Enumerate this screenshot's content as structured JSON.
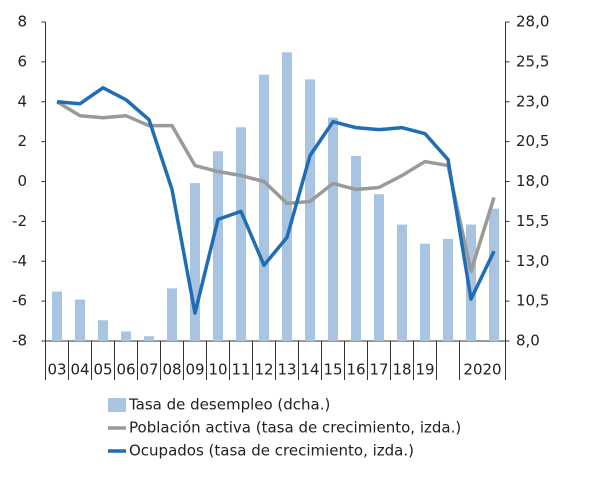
{
  "chart_data": {
    "type": "combo",
    "categories": [
      "03",
      "04",
      "05",
      "06",
      "07",
      "08",
      "09",
      "10",
      "11",
      "12",
      "13",
      "14",
      "15",
      "16",
      "17",
      "18",
      "19",
      null,
      "2020",
      null
    ],
    "series": [
      {
        "name": "Tasa de desempleo (dcha.)",
        "type": "bar",
        "axis": "y2",
        "color": "#a9c4e0",
        "values": [
          11.1,
          10.6,
          9.3,
          8.6,
          8.3,
          11.3,
          17.9,
          19.9,
          21.4,
          24.7,
          26.1,
          24.4,
          22.0,
          19.6,
          17.2,
          15.3,
          14.1,
          14.4,
          15.3,
          16.3
        ]
      },
      {
        "name": "Población activa (tasa de crecimiento, izda.)",
        "type": "line",
        "color": "#9a9a9a",
        "values": [
          4.0,
          3.3,
          3.2,
          3.3,
          2.8,
          2.8,
          0.8,
          0.5,
          0.3,
          0.0,
          -1.1,
          -1.0,
          -0.1,
          -0.4,
          -0.3,
          0.3,
          1.0,
          0.8,
          -4.5,
          -0.8
        ]
      },
      {
        "name": "Ocupados (tasa de  crecimiento, izda.)",
        "type": "line",
        "color": "#1f6db5",
        "values": [
          4.0,
          3.9,
          4.7,
          4.1,
          3.1,
          -0.4,
          -6.6,
          -1.9,
          -1.5,
          -4.2,
          -2.8,
          1.3,
          3.0,
          2.7,
          2.6,
          2.7,
          2.4,
          1.1,
          -5.9,
          -3.5
        ]
      }
    ],
    "ylim": [
      -8,
      8
    ],
    "yticks": [
      -8,
      -6,
      -4,
      -2,
      0,
      2,
      4,
      6,
      8
    ],
    "y2lim": [
      8,
      28
    ],
    "y2ticks": [
      {
        "value": 8,
        "label": "8,0"
      },
      {
        "value": 10.5,
        "label": "10,5"
      },
      {
        "value": 13,
        "label": "13,0"
      },
      {
        "value": 15.5,
        "label": "15,5"
      },
      {
        "value": 18,
        "label": "18,0"
      },
      {
        "value": 20.5,
        "label": "20,5"
      },
      {
        "value": 23,
        "label": "23,0"
      },
      {
        "value": 25.5,
        "label": "25,5"
      },
      {
        "value": 28,
        "label": "28,0"
      }
    ],
    "legend": "bottom"
  }
}
